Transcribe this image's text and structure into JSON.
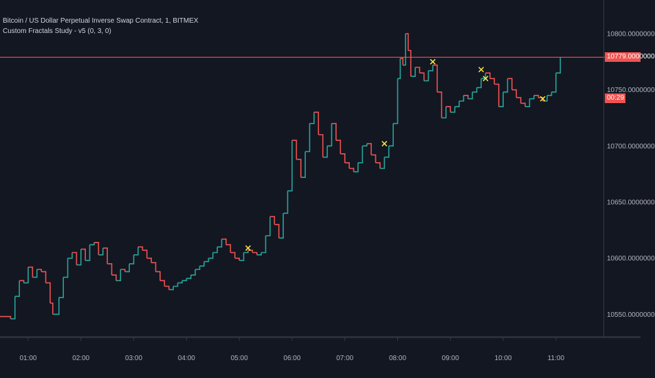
{
  "legend": {
    "symbol": "Bitcoin / US Dollar Perpetual Inverse Swap Contract, 1, BITMEX",
    "study": "Custom Fractals Study - v5 (0, 3, 0)"
  },
  "last_price_label": "10779.0000000",
  "countdown_label": "00:29",
  "colors": {
    "background": "#131722",
    "up": "#26a69a",
    "down": "#ef5350",
    "fractal": "#ffeb3b",
    "price_line": "#ef5350",
    "axis_text": "#b2b5be"
  },
  "chart_data": {
    "type": "line",
    "title": "",
    "xlabel": "",
    "ylabel": "",
    "x_ticks": [
      "01:00",
      "02:00",
      "03:00",
      "04:00",
      "05:00",
      "06:00",
      "07:00",
      "08:00",
      "09:00",
      "10:00",
      "11:00"
    ],
    "y_ticks": [
      "10550.0000000",
      "10600.0000000",
      "10650.0000000",
      "10700.0000000",
      "10750.0000000",
      "10800.0000000"
    ],
    "x_range": [
      "00:28",
      "11:54"
    ],
    "y_range": [
      10530,
      10830
    ],
    "last_price": 10779,
    "grid": false,
    "series": [
      {
        "points": [
          [
            "00:28",
            10548
          ],
          [
            "00:40",
            10546
          ],
          [
            "00:45",
            10566
          ],
          [
            "00:50",
            10580
          ],
          [
            "00:55",
            10578
          ],
          [
            "01:00",
            10592
          ],
          [
            "01:05",
            10583
          ],
          [
            "01:10",
            10590
          ],
          [
            "01:15",
            10588
          ],
          [
            "01:20",
            10578
          ],
          [
            "01:25",
            10560
          ],
          [
            "01:28",
            10550
          ],
          [
            "01:35",
            10565
          ],
          [
            "01:40",
            10583
          ],
          [
            "01:45",
            10600
          ],
          [
            "01:50",
            10605
          ],
          [
            "01:55",
            10594
          ],
          [
            "02:00",
            10608
          ],
          [
            "02:05",
            10598
          ],
          [
            "02:10",
            10612
          ],
          [
            "02:15",
            10614
          ],
          [
            "02:20",
            10603
          ],
          [
            "02:25",
            10609
          ],
          [
            "02:30",
            10595
          ],
          [
            "02:35",
            10585
          ],
          [
            "02:40",
            10580
          ],
          [
            "02:45",
            10590
          ],
          [
            "02:50",
            10588
          ],
          [
            "02:55",
            10595
          ],
          [
            "03:00",
            10603
          ],
          [
            "03:05",
            10610
          ],
          [
            "03:10",
            10607
          ],
          [
            "03:15",
            10600
          ],
          [
            "03:20",
            10596
          ],
          [
            "03:25",
            10588
          ],
          [
            "03:30",
            10580
          ],
          [
            "03:35",
            10575
          ],
          [
            "03:40",
            10572
          ],
          [
            "03:45",
            10575
          ],
          [
            "03:50",
            10578
          ],
          [
            "03:55",
            10580
          ],
          [
            "04:00",
            10582
          ],
          [
            "04:05",
            10585
          ],
          [
            "04:10",
            10590
          ],
          [
            "04:15",
            10593
          ],
          [
            "04:20",
            10597
          ],
          [
            "04:25",
            10600
          ],
          [
            "04:30",
            10605
          ],
          [
            "04:35",
            10610
          ],
          [
            "04:40",
            10617
          ],
          [
            "04:45",
            10612
          ],
          [
            "04:50",
            10605
          ],
          [
            "04:55",
            10600
          ],
          [
            "05:00",
            10598
          ],
          [
            "05:05",
            10605
          ],
          [
            "05:10",
            10607
          ],
          [
            "05:15",
            10605
          ],
          [
            "05:20",
            10603
          ],
          [
            "05:25",
            10605
          ],
          [
            "05:30",
            10620
          ],
          [
            "05:35",
            10637
          ],
          [
            "05:40",
            10630
          ],
          [
            "05:45",
            10618
          ],
          [
            "05:50",
            10640
          ],
          [
            "05:55",
            10660
          ],
          [
            "06:00",
            10705
          ],
          [
            "06:05",
            10688
          ],
          [
            "06:10",
            10672
          ],
          [
            "06:15",
            10695
          ],
          [
            "06:20",
            10720
          ],
          [
            "06:25",
            10730
          ],
          [
            "06:30",
            10710
          ],
          [
            "06:35",
            10690
          ],
          [
            "06:40",
            10700
          ],
          [
            "06:45",
            10720
          ],
          [
            "06:50",
            10705
          ],
          [
            "06:55",
            10693
          ],
          [
            "07:00",
            10685
          ],
          [
            "07:05",
            10680
          ],
          [
            "07:10",
            10677
          ],
          [
            "07:15",
            10685
          ],
          [
            "07:20",
            10700
          ],
          [
            "07:25",
            10702
          ],
          [
            "07:30",
            10692
          ],
          [
            "07:35",
            10685
          ],
          [
            "07:40",
            10680
          ],
          [
            "07:45",
            10690
          ],
          [
            "07:50",
            10700
          ],
          [
            "07:55",
            10720
          ],
          [
            "08:00",
            10760
          ],
          [
            "08:03",
            10778
          ],
          [
            "08:06",
            10772
          ],
          [
            "08:09",
            10800
          ],
          [
            "08:12",
            10785
          ],
          [
            "08:15",
            10762
          ],
          [
            "08:20",
            10770
          ],
          [
            "08:25",
            10765
          ],
          [
            "08:30",
            10758
          ],
          [
            "08:35",
            10767
          ],
          [
            "08:40",
            10772
          ],
          [
            "08:45",
            10748
          ],
          [
            "08:50",
            10725
          ],
          [
            "08:55",
            10735
          ],
          [
            "09:00",
            10730
          ],
          [
            "09:05",
            10735
          ],
          [
            "09:10",
            10740
          ],
          [
            "09:15",
            10745
          ],
          [
            "09:20",
            10742
          ],
          [
            "09:25",
            10748
          ],
          [
            "09:30",
            10752
          ],
          [
            "09:35",
            10760
          ],
          [
            "09:40",
            10765
          ],
          [
            "09:45",
            10760
          ],
          [
            "09:50",
            10755
          ],
          [
            "09:55",
            10735
          ],
          [
            "10:00",
            10748
          ],
          [
            "10:05",
            10760
          ],
          [
            "10:10",
            10750
          ],
          [
            "10:15",
            10743
          ],
          [
            "10:20",
            10738
          ],
          [
            "10:25",
            10735
          ],
          [
            "10:30",
            10742
          ],
          [
            "10:35",
            10745
          ],
          [
            "10:40",
            10743
          ],
          [
            "10:45",
            10740
          ],
          [
            "10:50",
            10745
          ],
          [
            "10:55",
            10748
          ],
          [
            "11:00",
            10765
          ],
          [
            "11:05",
            10779
          ]
        ]
      }
    ],
    "fractal_markers": [
      [
        "05:10",
        10609
      ],
      [
        "07:45",
        10702
      ],
      [
        "08:40",
        10775
      ],
      [
        "09:35",
        10768
      ],
      [
        "09:40",
        10760
      ],
      [
        "10:45",
        10742
      ]
    ]
  }
}
